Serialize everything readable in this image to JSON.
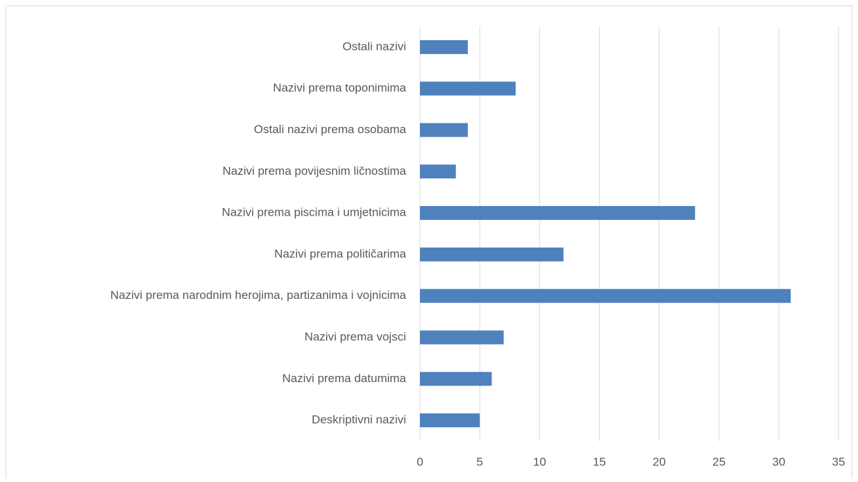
{
  "chart_data": {
    "type": "bar",
    "orientation": "horizontal",
    "categories": [
      "Ostali nazivi",
      "Nazivi prema toponimima",
      "Ostali nazivi prema osobama",
      "Nazivi prema povijesnim ličnostima",
      "Nazivi prema piscima i umjetnicima",
      "Nazivi prema političarima",
      "Nazivi prema narodnim herojima, partizanima i vojnicima",
      "Nazivi prema vojsci",
      "Nazivi prema datumima",
      "Deskriptivni nazivi"
    ],
    "values": [
      4,
      8,
      4,
      3,
      23,
      12,
      31,
      7,
      6,
      5
    ],
    "color": "#4f81bd",
    "xlim": [
      0,
      35
    ],
    "xticks": [
      0,
      5,
      10,
      15,
      20,
      25,
      30,
      35
    ],
    "grid": true
  }
}
